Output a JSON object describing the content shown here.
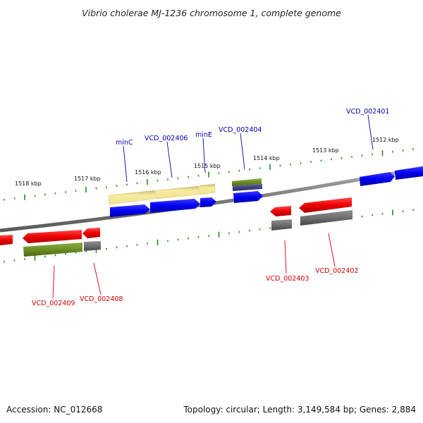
{
  "title": "Vibrio cholerae MJ-1236 chromosome 1, complete genome",
  "scale_labels": [
    "1518 kbp",
    "1517 kbp",
    "1516 kbp",
    "1515 kbp",
    "1514 kbp",
    "1513 kbp",
    "1512 kbp"
  ],
  "genes_top": [
    "minC",
    "VCD_002406",
    "minE",
    "VCD_002404",
    "VCD_002401"
  ],
  "genes_bottom": [
    "VCD_002409",
    "VCD_002408",
    "VCD_002403",
    "VCD_002402"
  ],
  "colors": {
    "forward_cds": "#0000ee",
    "reverse_cds": "#ee0000",
    "gene_olive": "#6b8e23",
    "gene_pale": "#f0e68c",
    "gene_grey": "#6e6e6e",
    "tick": "#228b22",
    "backbone": "#808080"
  },
  "footer": {
    "accession": "Accession: NC_012668",
    "summary": "Topology: circular; Length: 3,149,584 bp; Genes: 2,884"
  }
}
